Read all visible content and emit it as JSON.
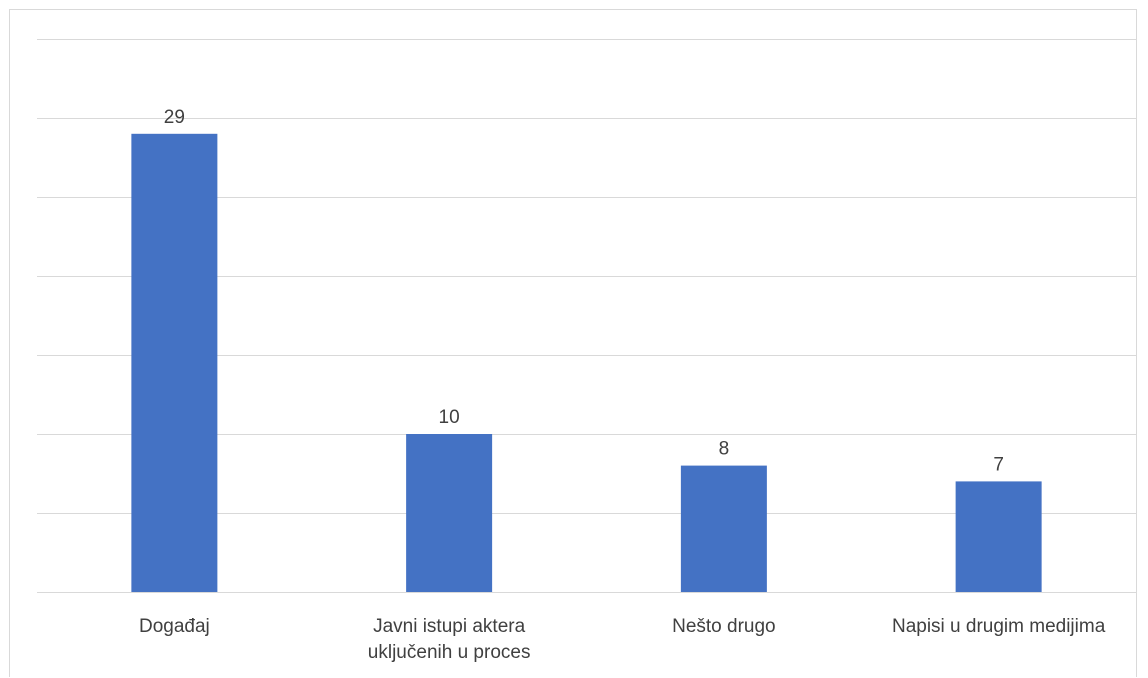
{
  "chart_data": {
    "type": "bar",
    "title": "",
    "xlabel": "",
    "ylabel": "",
    "categories": [
      [
        "Događaj"
      ],
      [
        "Javni istupi aktera",
        "uključenih u proces"
      ],
      [
        "Nešto drugo"
      ],
      [
        "Napisi u drugim medijima"
      ]
    ],
    "values": [
      29,
      10,
      8,
      7
    ],
    "ylim": [
      0,
      35
    ],
    "ytick_step": 5,
    "show_yaxis_labels": false,
    "grid": true,
    "legend": "none",
    "bar_color": "#4472c4",
    "grid_color": "#d9d9d9",
    "text_color": "#404040"
  }
}
